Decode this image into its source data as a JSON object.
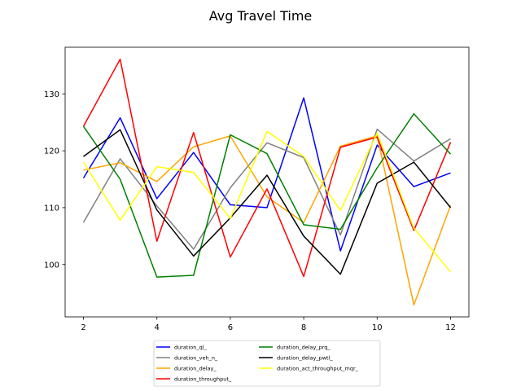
{
  "chart_data": {
    "type": "line",
    "title": "Avg Travel Time",
    "xlabel": "",
    "ylabel": "",
    "x": [
      2,
      3,
      4,
      5,
      6,
      7,
      8,
      9,
      10,
      11,
      12
    ],
    "xlim": [
      1.5,
      12.5
    ],
    "ylim": [
      90.8,
      138.2
    ],
    "xticks": [
      2,
      4,
      6,
      8,
      10,
      12
    ],
    "yticks": [
      100,
      110,
      120,
      130
    ],
    "grid": false,
    "legend_position": "bottom-center",
    "series": [
      {
        "name": "duration_ql_",
        "color": "#0000ff",
        "values": [
          115.2,
          125.8,
          111.6,
          119.7,
          110.5,
          110.0,
          129.3,
          102.4,
          121.0,
          113.7,
          116.1
        ]
      },
      {
        "name": "duration_veh_n_",
        "color": "#808080",
        "values": [
          107.4,
          118.6,
          110.3,
          102.7,
          113.5,
          121.4,
          118.8,
          105.2,
          123.8,
          118.2,
          122.1
        ]
      },
      {
        "name": "duration_delay_",
        "color": "#ffa500",
        "values": [
          116.6,
          117.9,
          114.6,
          120.7,
          122.6,
          111.9,
          107.4,
          120.8,
          122.6,
          92.9,
          110.4
        ]
      },
      {
        "name": "duration_throughput_",
        "color": "#ff0000",
        "values": [
          124.3,
          136.1,
          104.1,
          123.2,
          101.3,
          113.3,
          97.9,
          120.6,
          122.4,
          106.0,
          121.5
        ]
      },
      {
        "name": "duration_delay_prq_",
        "color": "#008000",
        "values": [
          124.3,
          115.0,
          97.8,
          98.1,
          122.8,
          119.5,
          107.0,
          106.2,
          117.0,
          126.5,
          119.4
        ]
      },
      {
        "name": "duration_delay_pwtl_",
        "color": "#000000",
        "values": [
          119.0,
          123.7,
          109.6,
          101.5,
          108.2,
          115.7,
          105.0,
          98.3,
          114.3,
          118.0,
          110.0
        ]
      },
      {
        "name": "duration_act_throughput_mqr_",
        "color": "#ffff00",
        "values": [
          118.0,
          107.8,
          117.2,
          116.2,
          108.1,
          123.4,
          119.0,
          109.5,
          123.1,
          106.4,
          98.7
        ]
      }
    ]
  }
}
